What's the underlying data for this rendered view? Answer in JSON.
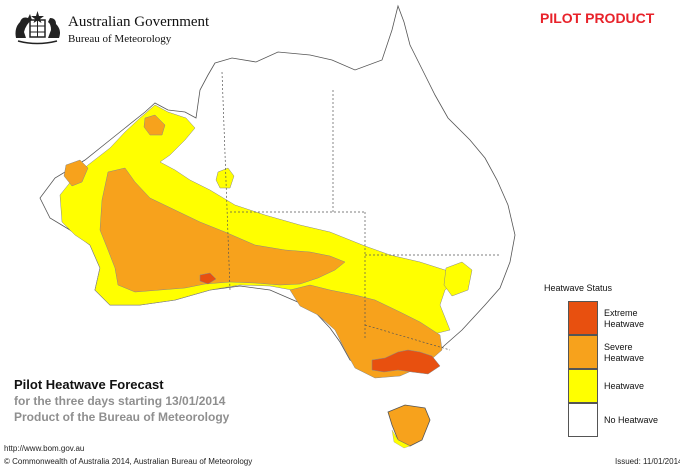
{
  "header": {
    "gov_line1": "Australian Government",
    "gov_line2": "Bureau of Meteorology",
    "product_tag": "PILOT PRODUCT"
  },
  "forecast": {
    "title": "Pilot Heatwave Forecast",
    "subtitle": "for the three days starting 13/01/2014",
    "product_of": "Product of the Bureau of Meteorology"
  },
  "footer": {
    "url": "http://www.bom.gov.au",
    "copyright": "© Commonwealth of Australia 2014, Australian Bureau of Meteorology",
    "issued": "Issued: 11/01/2014"
  },
  "legend": {
    "title": "Heatwave Status",
    "items": [
      {
        "label_line1": "Extreme",
        "label_line2": "Heatwave",
        "color": "#e8500f"
      },
      {
        "label_line1": "Severe",
        "label_line2": "Heatwave",
        "color": "#f7a21c"
      },
      {
        "label_line1": "Heatwave",
        "label_line2": "",
        "color": "#ffff00"
      },
      {
        "label_line1": "No Heatwave",
        "label_line2": "",
        "color": "#ffffff"
      }
    ]
  },
  "colors": {
    "extreme": "#e8500f",
    "severe": "#f7a21c",
    "heatwave": "#ffff00",
    "none": "#ffffff",
    "pilot_red": "#e8222a"
  }
}
